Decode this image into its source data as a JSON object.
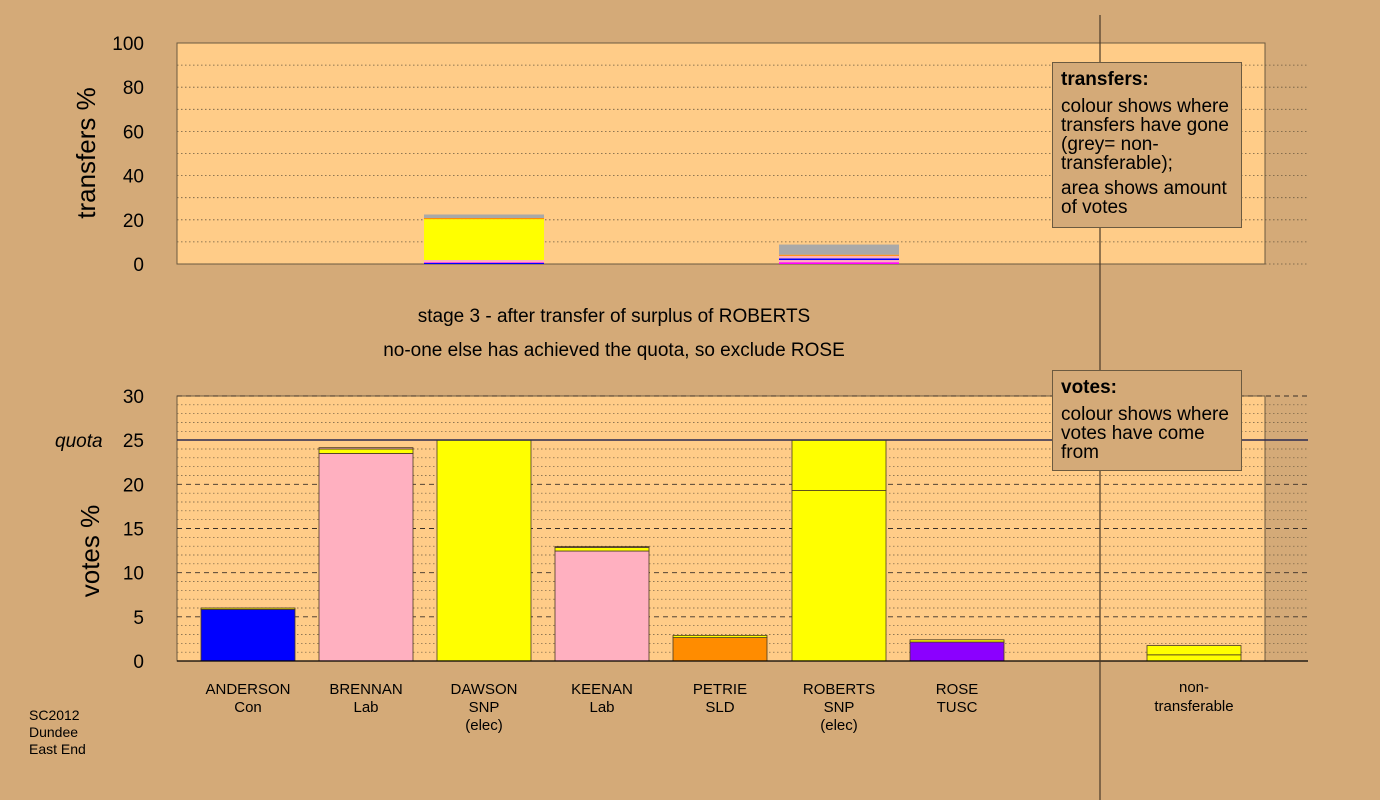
{
  "chart_data": [
    {
      "type": "bar",
      "name": "transfers",
      "ylabel": "transfers %",
      "ylim": [
        0,
        100
      ],
      "yticks": [
        0,
        20,
        40,
        60,
        80,
        100
      ],
      "grid": "dotted every 10",
      "bars": [
        {
          "candidate": "DAWSON",
          "segments": [
            {
              "value": 0.5,
              "color": "#0000ff"
            },
            {
              "value": 0.3,
              "color": "#ff00ff"
            },
            {
              "value": 1.0,
              "color": "#ffb0c0"
            },
            {
              "value": 18.5,
              "color": "#ffff00"
            },
            {
              "value": 0.5,
              "color": "#ff8c00"
            },
            {
              "value": 1.6,
              "color": "#a9a9a9"
            }
          ]
        },
        {
          "candidate": "ROBERTS",
          "segments": [
            {
              "value": 0.8,
              "color": "#ff00ff"
            },
            {
              "value": 1.0,
              "color": "#ffb0c0"
            },
            {
              "value": 0.7,
              "color": "#0000ff"
            },
            {
              "value": 1.2,
              "color": "#ffb0c0"
            },
            {
              "value": 0.5,
              "color": "#ff8c00"
            },
            {
              "value": 4.6,
              "color": "#a9a9a9"
            }
          ]
        }
      ]
    },
    {
      "type": "bar",
      "name": "votes",
      "ylabel": "votes %",
      "ylim": [
        0,
        30
      ],
      "yticks": [
        0,
        5,
        10,
        15,
        20,
        25,
        30
      ],
      "quota": 25,
      "quota_label": "quota",
      "categories": [
        {
          "name": "ANDERSON",
          "party": "Con",
          "elec": ""
        },
        {
          "name": "BRENNAN",
          "party": "Lab",
          "elec": ""
        },
        {
          "name": "DAWSON",
          "party": "SNP",
          "elec": "(elec)"
        },
        {
          "name": "KEENAN",
          "party": "Lab",
          "elec": ""
        },
        {
          "name": "PETRIE",
          "party": "SLD",
          "elec": ""
        },
        {
          "name": "ROBERTS",
          "party": "SNP",
          "elec": "(elec)"
        },
        {
          "name": "ROSE",
          "party": "TUSC",
          "elec": ""
        }
      ],
      "bars": [
        {
          "candidate": "ANDERSON",
          "segments": [
            {
              "value": 5.85,
              "color": "#0000ff"
            },
            {
              "value": 0.15,
              "color": "#ffff00"
            }
          ]
        },
        {
          "candidate": "BRENNAN",
          "segments": [
            {
              "value": 23.5,
              "color": "#ffb0c0"
            },
            {
              "value": 0.5,
              "color": "#ffff00"
            },
            {
              "value": 0.15,
              "color": "#ffb0c0"
            }
          ]
        },
        {
          "candidate": "DAWSON",
          "segments": [
            {
              "value": 25.0,
              "color": "#ffff00"
            }
          ]
        },
        {
          "candidate": "KEENAN",
          "segments": [
            {
              "value": 12.45,
              "color": "#ffb0c0"
            },
            {
              "value": 0.4,
              "color": "#ffff00"
            },
            {
              "value": 0.1,
              "color": "#ffb0c0"
            }
          ]
        },
        {
          "candidate": "PETRIE",
          "segments": [
            {
              "value": 2.65,
              "color": "#ff8c00"
            },
            {
              "value": 0.25,
              "color": "#ffff00"
            }
          ]
        },
        {
          "candidate": "ROBERTS",
          "segments": [
            {
              "value": 19.3,
              "color": "#ffff00"
            },
            {
              "value": 5.7,
              "color": "#ffff00"
            }
          ]
        },
        {
          "candidate": "ROSE",
          "segments": [
            {
              "value": 2.15,
              "color": "#8b00ff"
            },
            {
              "value": 0.25,
              "color": "#ffff00"
            }
          ]
        }
      ],
      "nontransferable": {
        "label1": "non-",
        "label2": "transferable",
        "segments": [
          {
            "value": 0.7,
            "color": "#ffff00"
          },
          {
            "value": 1.05,
            "color": "#ffff00"
          }
        ]
      }
    }
  ],
  "stage_line1": "stage 3 - after transfer of surplus of ROBERTS",
  "stage_line2": "no-one else has achieved the quota, so exclude ROSE",
  "legend_transfers": {
    "title": "transfers:",
    "body1": "colour shows where transfers have gone (grey= non-transferable);",
    "body2": "area shows amount of votes"
  },
  "legend_votes": {
    "title": "votes:",
    "body1": "colour shows where votes have come from"
  },
  "footer": {
    "line1": "SC2012",
    "line2": "Dundee",
    "line3": "East End"
  },
  "colors": {
    "panel": "#ffcc88",
    "background": "#d4aa78"
  }
}
